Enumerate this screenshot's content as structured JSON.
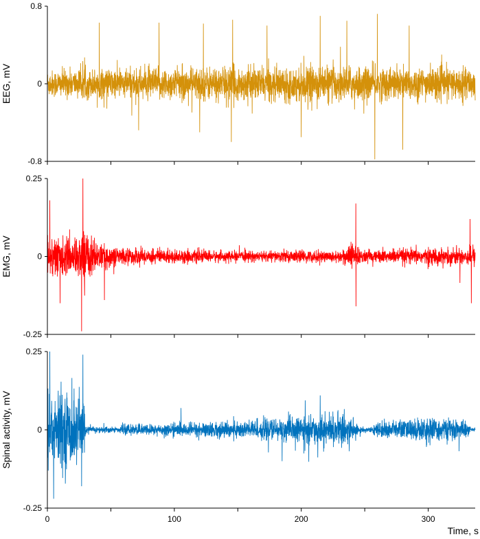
{
  "chart_data": {
    "type": "line",
    "xlabel": "Time, s",
    "x_ticks": [
      0,
      100,
      200,
      300
    ],
    "x_minor_ticks": [
      50,
      150,
      250
    ],
    "xlim": [
      0,
      337
    ],
    "grid": false,
    "panels": [
      {
        "ylabel": "EEG, mV",
        "ylim": [
          -0.8,
          0.8
        ],
        "y_ticks": [
          -0.8,
          0,
          0.8
        ],
        "y_tick_labels": [
          "-0.8",
          "0",
          "0.8"
        ],
        "color": "#D4910A",
        "profile": {
          "t": [
            0,
            30,
            60,
            100,
            140,
            180,
            220,
            260,
            300,
            337
          ],
          "typical_amplitude": [
            0.16,
            0.17,
            0.18,
            0.19,
            0.2,
            0.19,
            0.21,
            0.2,
            0.19,
            0.18
          ]
        },
        "peaks": [
          {
            "t": 41,
            "value": 0.63
          },
          {
            "t": 88,
            "value": 0.63
          },
          {
            "t": 123,
            "value": 0.62
          },
          {
            "t": 146,
            "value": 0.66
          },
          {
            "t": 173,
            "value": 0.6
          },
          {
            "t": 215,
            "value": 0.7
          },
          {
            "t": 236,
            "value": 0.65
          },
          {
            "t": 260,
            "value": 0.72
          },
          {
            "t": 285,
            "value": 0.6
          },
          {
            "t": 72,
            "value": -0.48
          },
          {
            "t": 145,
            "value": -0.6
          },
          {
            "t": 200,
            "value": -0.55
          },
          {
            "t": 258,
            "value": -0.78
          },
          {
            "t": 280,
            "value": -0.68
          },
          {
            "t": 120,
            "value": -0.5
          }
        ]
      },
      {
        "ylabel": "EMG, mV",
        "ylim": [
          -0.25,
          0.25
        ],
        "y_ticks": [
          -0.25,
          0,
          0.25
        ],
        "y_tick_labels": [
          "-0.25",
          "0",
          "0.25"
        ],
        "color": "#FF0000",
        "profile": {
          "t": [
            0,
            10,
            20,
            30,
            40,
            60,
            100,
            150,
            200,
            230,
            240,
            245,
            255,
            280,
            320,
            337
          ],
          "typical_amplitude": [
            0.08,
            0.07,
            0.06,
            0.1,
            0.045,
            0.032,
            0.025,
            0.018,
            0.022,
            0.02,
            0.05,
            0.03,
            0.022,
            0.028,
            0.03,
            0.035
          ]
        },
        "peaks": [
          {
            "t": 2,
            "value": 0.18
          },
          {
            "t": 28,
            "value": 0.25
          },
          {
            "t": 27,
            "value": -0.24
          },
          {
            "t": 243,
            "value": 0.17
          },
          {
            "t": 243,
            "value": -0.16
          },
          {
            "t": 333,
            "value": 0.12
          },
          {
            "t": 334,
            "value": -0.15
          },
          {
            "t": 45,
            "value": -0.14
          },
          {
            "t": 10,
            "value": -0.15
          }
        ]
      },
      {
        "ylabel": "Spinal activity, mV",
        "ylim": [
          -0.25,
          0.25
        ],
        "y_ticks": [
          -0.25,
          0,
          0.25
        ],
        "y_tick_labels": [
          "-0.25",
          "0",
          "0.25"
        ],
        "color": "#0072BD",
        "profile": {
          "t": [
            0,
            10,
            20,
            29,
            30,
            50,
            56,
            60,
            100,
            150,
            200,
            230,
            243,
            245,
            255,
            260,
            300,
            330,
            333,
            337
          ],
          "typical_amplitude": [
            0.15,
            0.14,
            0.13,
            0.12,
            0.012,
            0.012,
            0.008,
            0.018,
            0.022,
            0.032,
            0.045,
            0.055,
            0.048,
            0.012,
            0.008,
            0.028,
            0.045,
            0.032,
            0.01,
            0.008
          ]
        },
        "peaks": [
          {
            "t": 2,
            "value": 0.25
          },
          {
            "t": 28,
            "value": 0.24
          },
          {
            "t": 5,
            "value": -0.22
          },
          {
            "t": 27,
            "value": -0.18
          },
          {
            "t": 215,
            "value": 0.11
          },
          {
            "t": 185,
            "value": -0.1
          }
        ]
      }
    ]
  }
}
